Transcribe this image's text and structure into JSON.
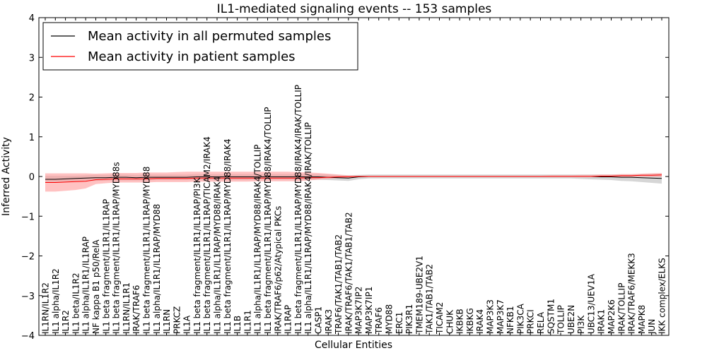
{
  "chart_data": {
    "type": "line",
    "title": "IL1-mediated signaling events -- 153 samples",
    "xlabel": "Cellular Entities",
    "ylabel": "Inferred Activity",
    "ylim": [
      -4,
      4
    ],
    "yticks": [
      -4,
      -3,
      -2,
      -1,
      0,
      1,
      2,
      3,
      4
    ],
    "ytick_labels": [
      "−4",
      "−3",
      "−2",
      "−1",
      "0",
      "1",
      "2",
      "3",
      "4"
    ],
    "grid": false,
    "legend_position": "top-left",
    "categories": [
      "IL1RN/IL1R2",
      "IL1 alpha/IL1R2",
      "IL1R2",
      "IL1 beta/IL1R2",
      "IL1 alpha/IL1R1/IL1RAP",
      "NF kappa B1 p50/RelA",
      "IL1 beta fragment/IL1R1/IL1RAP",
      "IL1 beta fragment/IL1R1/IL1RAP/MYD88s",
      "IL1RN/IL1R1",
      "IRAK/TRAF6",
      "IL1 beta fragment/IL1R1/IL1RAP/MYD88",
      "IL1 alpha/IL1R1/IL1RAP/MYD88",
      "IL1RN",
      "PRKCZ",
      "IL1A",
      "IL1 beta fragment/IL1R1/IL1RAP/PI3K",
      "IL1 beta fragment/IL1R1/IL1RAP/TICAM2/IRAK4",
      "IL1 alpha/IL1R1/IL1RAP/MYD88/IRAK4",
      "IL1 beta fragment/IL1R1/IL1RAP/MYD88/IRAK4",
      "IL1B",
      "IL1R1",
      "IL1 alpha/IL1R1/IL1RAP/MYD88/IRAK4/TOLLIP",
      "IL1 beta fragment/IL1R1/IL1RAP/MYD88/IRAK4/TOLLIP",
      "IRAK/TRAF6/p62/Atypical PKCs",
      "IL1RAP",
      "IL1 beta fragment/IL1R1/IL1RAP/MYD88/IRAK4/IRAK/TOLLIP",
      "IL1 alpha/IL1R1/IL1RAP/MYD88/IRAK4/IRAK/TOLLIP",
      "CASP1",
      "IRAK3",
      "TRAF6/TAK1/TAB1/TAB2",
      "IRAK/TRAF6/TAK1/TAB1/TAB2",
      "MAP3K7IP2",
      "MAP3K7IP1",
      "TRAF6",
      "MYD88",
      "ERC1",
      "PIK3R1",
      "TMEM189-UBE2V1",
      "TAK1/TAB1/TAB2",
      "TICAM2",
      "CHUK",
      "IKBKB",
      "IKBKG",
      "IRAK4",
      "MAP3K3",
      "MAP3K7",
      "NFKB1",
      "PIK3CA",
      "PRKCI",
      "RELA",
      "SQSTM1",
      "TOLLIP",
      "UBE2N",
      "PI3K",
      "UBC13/UEV1A",
      "IRAK1",
      "MAP2K6",
      "IRAK/TOLLIP",
      "IRAK/TRAF6/MEKK3",
      "MAPK8",
      "JUN",
      "IKK complex/ELKS"
    ],
    "series": [
      {
        "name": "Mean activity in all permuted samples",
        "color": "#000000",
        "values": [
          -0.07,
          -0.07,
          -0.06,
          -0.05,
          -0.04,
          -0.03,
          -0.03,
          -0.02,
          -0.02,
          -0.03,
          -0.02,
          -0.02,
          -0.02,
          -0.02,
          -0.02,
          -0.01,
          -0.01,
          -0.01,
          -0.01,
          -0.01,
          -0.01,
          -0.01,
          -0.01,
          -0.01,
          -0.01,
          -0.01,
          -0.01,
          -0.01,
          -0.02,
          -0.03,
          -0.04,
          -0.01,
          0.0,
          0.0,
          0.0,
          0.0,
          0.0,
          0.0,
          0.0,
          0.0,
          0.0,
          0.0,
          0.0,
          0.0,
          0.0,
          0.0,
          0.0,
          0.0,
          0.0,
          0.0,
          0.0,
          0.0,
          0.0,
          0.0,
          0.0,
          -0.01,
          -0.01,
          -0.02,
          -0.02,
          -0.03,
          -0.04,
          -0.05
        ],
        "lower": [
          -0.15,
          -0.15,
          -0.14,
          -0.13,
          -0.12,
          -0.11,
          -0.1,
          -0.1,
          -0.1,
          -0.1,
          -0.1,
          -0.09,
          -0.09,
          -0.09,
          -0.09,
          -0.09,
          -0.09,
          -0.09,
          -0.09,
          -0.09,
          -0.09,
          -0.08,
          -0.08,
          -0.08,
          -0.08,
          -0.08,
          -0.08,
          -0.08,
          -0.09,
          -0.1,
          -0.11,
          -0.07,
          -0.05,
          -0.05,
          -0.05,
          -0.05,
          -0.05,
          -0.05,
          -0.05,
          -0.05,
          -0.05,
          -0.05,
          -0.05,
          -0.05,
          -0.05,
          -0.05,
          -0.05,
          -0.05,
          -0.05,
          -0.05,
          -0.05,
          -0.05,
          -0.05,
          -0.06,
          -0.07,
          -0.08,
          -0.09,
          -0.11,
          -0.12,
          -0.14,
          -0.16,
          -0.18
        ],
        "upper": [
          0.02,
          0.02,
          0.02,
          0.02,
          0.03,
          0.04,
          0.04,
          0.05,
          0.05,
          0.04,
          0.05,
          0.05,
          0.05,
          0.05,
          0.05,
          0.06,
          0.06,
          0.06,
          0.06,
          0.06,
          0.06,
          0.06,
          0.06,
          0.06,
          0.06,
          0.06,
          0.06,
          0.06,
          0.05,
          0.04,
          0.03,
          0.04,
          0.05,
          0.05,
          0.05,
          0.05,
          0.05,
          0.05,
          0.05,
          0.05,
          0.05,
          0.05,
          0.05,
          0.05,
          0.05,
          0.05,
          0.05,
          0.05,
          0.05,
          0.05,
          0.05,
          0.05,
          0.05,
          0.05,
          0.05,
          0.05,
          0.05,
          0.05,
          0.05,
          0.06,
          0.07,
          0.07
        ]
      },
      {
        "name": "Mean activity in patient samples",
        "color": "#ff0000",
        "values": [
          -0.15,
          -0.15,
          -0.14,
          -0.13,
          -0.12,
          -0.08,
          -0.07,
          -0.06,
          -0.06,
          -0.06,
          -0.06,
          -0.05,
          -0.05,
          -0.05,
          -0.05,
          -0.04,
          -0.04,
          -0.04,
          -0.04,
          -0.04,
          -0.04,
          -0.04,
          -0.04,
          -0.04,
          -0.04,
          -0.04,
          -0.03,
          -0.03,
          -0.02,
          -0.01,
          -0.01,
          0.0,
          0.0,
          0.0,
          0.0,
          0.0,
          0.0,
          0.0,
          0.0,
          0.0,
          0.0,
          0.0,
          0.0,
          0.0,
          0.0,
          0.0,
          0.0,
          0.0,
          0.0,
          0.0,
          0.0,
          0.0,
          0.0,
          0.0,
          0.0,
          0.01,
          0.01,
          0.02,
          0.02,
          0.03,
          0.03,
          0.04
        ],
        "lower": [
          -0.38,
          -0.38,
          -0.36,
          -0.34,
          -0.3,
          -0.19,
          -0.17,
          -0.15,
          -0.15,
          -0.15,
          -0.15,
          -0.14,
          -0.14,
          -0.14,
          -0.14,
          -0.13,
          -0.13,
          -0.13,
          -0.13,
          -0.13,
          -0.13,
          -0.12,
          -0.12,
          -0.12,
          -0.12,
          -0.12,
          -0.1,
          -0.08,
          -0.06,
          -0.04,
          -0.02,
          -0.01,
          -0.01,
          -0.01,
          -0.01,
          -0.01,
          -0.01,
          -0.01,
          -0.01,
          -0.01,
          -0.01,
          -0.01,
          -0.01,
          -0.01,
          -0.01,
          -0.01,
          -0.01,
          -0.01,
          -0.01,
          -0.01,
          -0.01,
          -0.01,
          -0.01,
          -0.01,
          -0.01,
          -0.01,
          -0.01,
          -0.01,
          -0.01,
          -0.01,
          -0.01,
          -0.01
        ],
        "upper": [
          0.08,
          0.08,
          0.08,
          0.08,
          0.08,
          0.07,
          0.08,
          0.09,
          0.09,
          0.09,
          0.1,
          0.1,
          0.1,
          0.11,
          0.12,
          0.12,
          0.12,
          0.12,
          0.12,
          0.12,
          0.12,
          0.12,
          0.12,
          0.12,
          0.12,
          0.11,
          0.1,
          0.09,
          0.07,
          0.05,
          0.03,
          0.02,
          0.02,
          0.02,
          0.02,
          0.02,
          0.02,
          0.02,
          0.02,
          0.02,
          0.02,
          0.02,
          0.02,
          0.02,
          0.02,
          0.02,
          0.02,
          0.02,
          0.02,
          0.02,
          0.03,
          0.03,
          0.03,
          0.04,
          0.04,
          0.05,
          0.05,
          0.06,
          0.06,
          0.07,
          0.08,
          0.09
        ]
      }
    ],
    "band_colors": {
      "permuted": "#c8c8c8",
      "patient": "#ff9a9a"
    }
  }
}
